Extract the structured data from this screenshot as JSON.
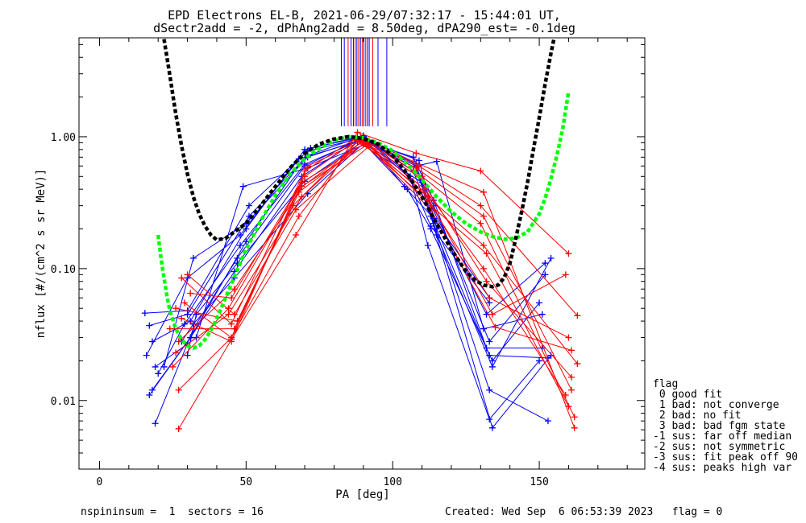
{
  "chart_data": {
    "type": "line",
    "title_lines": [
      "EPD Electrons EL-B, 2021-06-29/07:32:17 - 15:44:01 UT,",
      "dSectr2add = -2, dPhAng2add = 8.50deg, dPA290_est=  -0.1deg"
    ],
    "xlabel": "PA [deg]",
    "ylabel": "nflux [#/(cm^2 s sr MeV)]",
    "xlim": [
      -7,
      186
    ],
    "ylim_log10": [
      -2.52,
      0.75
    ],
    "x_ticks": [
      0,
      50,
      100,
      150
    ],
    "x_tick_labels": [
      "0",
      "50",
      "100",
      "150"
    ],
    "y_ticks": [
      0.01,
      0.1,
      1.0
    ],
    "y_tick_labels": [
      "0.01",
      "0.10",
      "1.00"
    ],
    "grid": false,
    "colors": {
      "blue": "#0000ff",
      "red": "#ff0000",
      "black": "#000000",
      "green": "#00ff00"
    },
    "legend": {
      "placement": "right-outside",
      "title": "flag",
      "entries": [
        " 0 good fit",
        " 1 bad: not converge",
        " 2 bad: no fit",
        " 3 bad: bad fgm state",
        "-1 sus: far off median",
        "-2 sus: not symmetric",
        "-3 sus: fit peak off 90",
        "-4 sus: peaks high var"
      ]
    },
    "footer": {
      "left": "nspininsum =  1  sectors = 16",
      "right": "Created: Wed Sep  6 06:53:39 2023   flag = 0"
    },
    "vertical_marks": {
      "x": [
        82.5,
        83.5,
        84.8,
        85.8,
        86.6,
        87.2,
        87.8,
        88.4,
        89.0,
        89.6,
        90.2,
        90.8,
        91.4,
        92.0,
        93.2,
        95.0,
        98.0
      ],
      "colors": [
        "blue",
        "blue",
        "red",
        "blue",
        "blue",
        "red",
        "blue",
        "red",
        "blue",
        "red",
        "blue",
        "red",
        "blue",
        "blue",
        "red",
        "blue",
        "blue"
      ],
      "y_range": [
        1.2,
        6.0
      ]
    },
    "black_fit": {
      "name": "black dashed fit",
      "x": [
        22,
        24,
        26,
        28,
        30,
        32,
        34,
        36,
        38,
        40,
        43,
        46,
        50,
        55,
        60,
        65,
        70,
        75,
        80,
        85,
        90,
        95,
        100,
        105,
        110,
        115,
        120,
        125,
        128,
        131,
        134,
        136,
        138,
        140,
        142,
        144,
        146,
        148,
        150,
        152,
        154,
        155
      ],
      "y": [
        5.5,
        2.9,
        1.5,
        0.85,
        0.52,
        0.35,
        0.26,
        0.21,
        0.18,
        0.165,
        0.17,
        0.19,
        0.22,
        0.3,
        0.42,
        0.58,
        0.75,
        0.88,
        0.96,
        1.0,
        0.97,
        0.88,
        0.72,
        0.52,
        0.35,
        0.22,
        0.14,
        0.095,
        0.082,
        0.075,
        0.073,
        0.075,
        0.085,
        0.11,
        0.17,
        0.27,
        0.45,
        0.8,
        1.4,
        2.5,
        4.3,
        5.5
      ]
    },
    "green_fit": {
      "name": "green dashed fit",
      "x": [
        20,
        21,
        22,
        23,
        24,
        26,
        28,
        30,
        32,
        34,
        36,
        38,
        40,
        42,
        44,
        46,
        48,
        50,
        55,
        60,
        65,
        70,
        75,
        80,
        85,
        90,
        95,
        100,
        105,
        110,
        115,
        120,
        125,
        130,
        134,
        138,
        142,
        146,
        150,
        152,
        154,
        156,
        158,
        160
      ],
      "y": [
        0.18,
        0.12,
        0.085,
        0.062,
        0.048,
        0.035,
        0.029,
        0.026,
        0.025,
        0.026,
        0.029,
        0.034,
        0.042,
        0.053,
        0.068,
        0.087,
        0.11,
        0.14,
        0.23,
        0.36,
        0.52,
        0.68,
        0.82,
        0.93,
        1.0,
        0.98,
        0.9,
        0.78,
        0.62,
        0.47,
        0.35,
        0.27,
        0.22,
        0.19,
        0.175,
        0.167,
        0.17,
        0.19,
        0.26,
        0.34,
        0.48,
        0.72,
        1.15,
        2.2
      ]
    },
    "series": [
      {
        "color": "blue",
        "x": [
          15.5,
          30,
          51,
          71,
          89,
          109,
          115,
          133,
          153
        ],
        "y": [
          0.046,
          0.048,
          0.3,
          0.78,
          0.97,
          0.66,
          0.2,
          0.022,
          0.021
        ]
      },
      {
        "color": "blue",
        "x": [
          17,
          30,
          51,
          71,
          88,
          108,
          115,
          134,
          154
        ],
        "y": [
          0.037,
          0.045,
          0.25,
          0.72,
          0.98,
          0.58,
          0.18,
          0.018,
          0.12
        ]
      },
      {
        "color": "blue",
        "x": [
          18,
          31,
          50,
          70,
          90,
          108,
          114,
          133,
          153
        ],
        "y": [
          0.028,
          0.04,
          0.2,
          0.8,
          1.0,
          0.62,
          0.22,
          0.012,
          0.007
        ]
      },
      {
        "color": "blue",
        "x": [
          16,
          30,
          48,
          68,
          91,
          107,
          113,
          134,
          154
        ],
        "y": [
          0.022,
          0.085,
          0.18,
          0.68,
          0.96,
          0.55,
          0.25,
          0.0062,
          0.022
        ]
      },
      {
        "color": "blue",
        "x": [
          19,
          32,
          47,
          70,
          88,
          109,
          113,
          132,
          152
        ],
        "y": [
          0.0067,
          0.035,
          0.12,
          0.6,
          0.94,
          0.5,
          0.3,
          0.045,
          0.11
        ]
      },
      {
        "color": "blue",
        "x": [
          18,
          31,
          50,
          72,
          90,
          106,
          112,
          133,
          150
        ],
        "y": [
          0.012,
          0.03,
          0.16,
          0.82,
          1.02,
          0.5,
          0.15,
          0.0072,
          0.02
        ]
      },
      {
        "color": "blue",
        "x": [
          19,
          33,
          49,
          71,
          92,
          107,
          114,
          132,
          151
        ],
        "y": [
          0.018,
          0.03,
          0.42,
          0.58,
          0.9,
          0.7,
          0.33,
          0.025,
          0.025
        ]
      },
      {
        "color": "blue",
        "x": [
          17,
          31,
          46,
          69,
          89,
          108,
          115,
          131,
          151
        ],
        "y": [
          0.011,
          0.03,
          0.095,
          0.5,
          0.97,
          0.6,
          0.65,
          0.035,
          0.045
        ]
      },
      {
        "color": "blue",
        "x": [
          20,
          29,
          48,
          70,
          88,
          110,
          114,
          133,
          152
        ],
        "y": [
          0.016,
          0.038,
          0.15,
          0.62,
          0.92,
          0.45,
          0.3,
          0.028,
          0.09
        ]
      },
      {
        "color": "blue",
        "x": [
          22,
          32,
          50,
          71,
          89,
          105,
          113,
          134,
          150
        ],
        "y": [
          0.018,
          0.12,
          0.22,
          0.7,
          0.95,
          0.4,
          0.2,
          0.02,
          0.055
        ]
      },
      {
        "color": "blue",
        "x": [
          28,
          32,
          46,
          71,
          91,
          104,
          114,
          133
        ],
        "y": [
          0.028,
          0.038,
          0.085,
          0.37,
          0.93,
          0.42,
          0.24,
          0.06
        ]
      },
      {
        "color": "blue",
        "x": [
          30,
          33,
          47,
          70,
          91,
          106,
          113,
          133
        ],
        "y": [
          0.022,
          0.045,
          0.11,
          0.46,
          0.96,
          0.48,
          0.21,
          0.055
        ]
      },
      {
        "color": "red",
        "x": [
          27,
          45,
          67,
          88,
          108,
          130,
          160
        ],
        "y": [
          0.0061,
          0.029,
          0.18,
          1.08,
          0.75,
          0.55,
          0.13
        ]
      },
      {
        "color": "red",
        "x": [
          27,
          45,
          68,
          89,
          107,
          131,
          162
        ],
        "y": [
          0.012,
          0.03,
          0.25,
          1.0,
          0.65,
          0.38,
          0.0062
        ]
      },
      {
        "color": "red",
        "x": [
          26,
          44,
          69,
          90,
          109,
          130,
          163
        ],
        "y": [
          0.023,
          0.045,
          0.35,
          0.95,
          0.6,
          0.3,
          0.044
        ]
      },
      {
        "color": "red",
        "x": [
          28,
          45,
          70,
          87,
          108,
          131,
          161
        ],
        "y": [
          0.085,
          0.038,
          0.55,
          0.96,
          0.58,
          0.25,
          0.012
        ]
      },
      {
        "color": "red",
        "x": [
          24,
          46,
          66,
          89,
          110,
          130,
          162
        ],
        "y": [
          0.035,
          0.035,
          0.3,
          0.98,
          0.5,
          0.22,
          0.0075
        ]
      },
      {
        "color": "red",
        "x": [
          29,
          45,
          68,
          90,
          112,
          131,
          163
        ],
        "y": [
          0.055,
          0.03,
          0.4,
          0.93,
          0.35,
          0.15,
          0.019
        ]
      },
      {
        "color": "red",
        "x": [
          30,
          46,
          67,
          92,
          113,
          132,
          160
        ],
        "y": [
          0.09,
          0.045,
          0.28,
          0.85,
          0.3,
          0.13,
          0.009
        ]
      },
      {
        "color": "red",
        "x": [
          25,
          44,
          69,
          91,
          111,
          131,
          159
        ],
        "y": [
          0.018,
          0.05,
          0.45,
          0.9,
          0.4,
          0.1,
          0.011
        ]
      },
      {
        "color": "red",
        "x": [
          31,
          45,
          70,
          88,
          109,
          132,
          161
        ],
        "y": [
          0.065,
          0.06,
          0.5,
          0.95,
          0.5,
          0.08,
          0.015
        ]
      },
      {
        "color": "red",
        "x": [
          27,
          46,
          68,
          90,
          112,
          133,
          160
        ],
        "y": [
          0.028,
          0.07,
          0.38,
          0.88,
          0.33,
          0.06,
          0.03
        ]
      },
      {
        "color": "red",
        "x": [
          28,
          45,
          71,
          89,
          111,
          134,
          159
        ],
        "y": [
          0.042,
          0.028,
          0.6,
          0.92,
          0.38,
          0.045,
          0.09
        ]
      },
      {
        "color": "red",
        "x": [
          26,
          47,
          69,
          91,
          113,
          135,
          161
        ],
        "y": [
          0.05,
          0.04,
          0.42,
          0.86,
          0.28,
          0.036,
          0.024
        ]
      }
    ]
  }
}
